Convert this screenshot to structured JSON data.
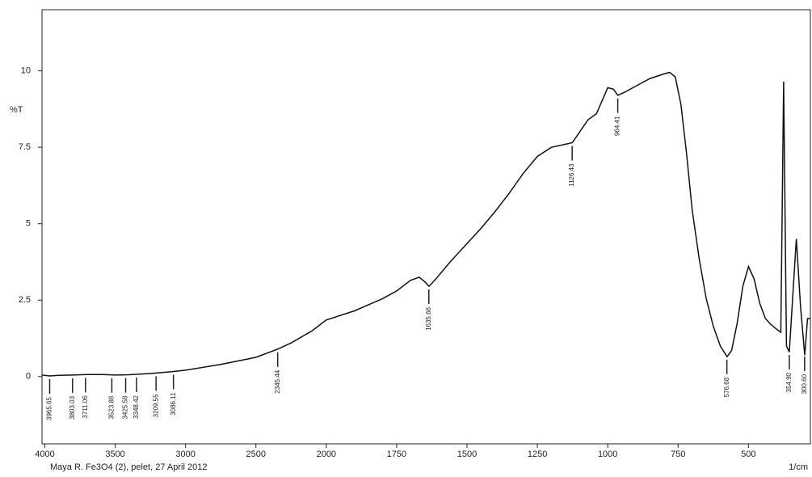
{
  "chart_data": {
    "type": "line",
    "y_label": "%T",
    "x_label": "1/cm",
    "footer": "Maya R. Fe3O4 (2), pelet, 27 April 2012",
    "xlim": [
      4020,
      280
    ],
    "xticks": [
      4000,
      3500,
      3000,
      2500,
      2000,
      1750,
      1500,
      1250,
      1000,
      750,
      500
    ],
    "ylim": [
      -2.2,
      12
    ],
    "yticks": [
      0,
      2.5,
      5,
      7.5,
      10
    ],
    "series": [
      {
        "color": "#111111",
        "x": [
          4020,
          3965,
          3900,
          3800,
          3700,
          3600,
          3500,
          3400,
          3250,
          3100,
          3000,
          2750,
          2500,
          2345,
          2250,
          2100,
          2000,
          1900,
          1800,
          1750,
          1700,
          1670,
          1650,
          1635,
          1610,
          1560,
          1500,
          1450,
          1400,
          1350,
          1300,
          1250,
          1200,
          1150,
          1126,
          1100,
          1070,
          1040,
          1000,
          980,
          964,
          940,
          900,
          850,
          800,
          780,
          760,
          740,
          720,
          700,
          675,
          650,
          625,
          600,
          576,
          560,
          540,
          520,
          500,
          480,
          460,
          440,
          420,
          400,
          385,
          375,
          365,
          355,
          330,
          315,
          300,
          290,
          280
        ],
        "values": [
          0.05,
          0.02,
          0.04,
          0.05,
          0.07,
          0.07,
          0.05,
          0.06,
          0.1,
          0.16,
          0.21,
          0.4,
          0.63,
          0.9,
          1.1,
          1.5,
          1.85,
          2.15,
          2.55,
          2.8,
          3.15,
          3.25,
          3.1,
          2.95,
          3.2,
          3.75,
          4.35,
          4.85,
          5.4,
          6.0,
          6.65,
          7.2,
          7.5,
          7.6,
          7.65,
          8.0,
          8.4,
          8.6,
          9.45,
          9.4,
          9.2,
          9.3,
          9.5,
          9.75,
          9.9,
          9.95,
          9.8,
          8.9,
          7.3,
          5.45,
          3.85,
          2.55,
          1.65,
          1.0,
          0.65,
          0.85,
          1.75,
          2.95,
          3.6,
          3.2,
          2.4,
          1.9,
          1.7,
          1.55,
          1.45,
          9.65,
          1.0,
          0.8,
          4.5,
          2.3,
          0.7,
          1.9,
          1.9
        ]
      }
    ],
    "peaks": [
      {
        "x": 3965.65,
        "label": "3965.65"
      },
      {
        "x": 3803.03,
        "label": "3803.03"
      },
      {
        "x": 3711.06,
        "label": "3711.06"
      },
      {
        "x": 3523.88,
        "label": "3523.88"
      },
      {
        "x": 3425.58,
        "label": "3425.58"
      },
      {
        "x": 3348.42,
        "label": "3348.42"
      },
      {
        "x": 3209.55,
        "label": "3209.55"
      },
      {
        "x": 3086.11,
        "label": "3086.11"
      },
      {
        "x": 2345.44,
        "label": "2345.44"
      },
      {
        "x": 1635.66,
        "label": "1635.66"
      },
      {
        "x": 1126.43,
        "label": "1126.43"
      },
      {
        "x": 964.41,
        "label": "964.41"
      },
      {
        "x": 576.68,
        "label": "576.68"
      },
      {
        "x": 354.9,
        "label": "354.90"
      },
      {
        "x": 300.6,
        "label": "300.60"
      }
    ]
  }
}
